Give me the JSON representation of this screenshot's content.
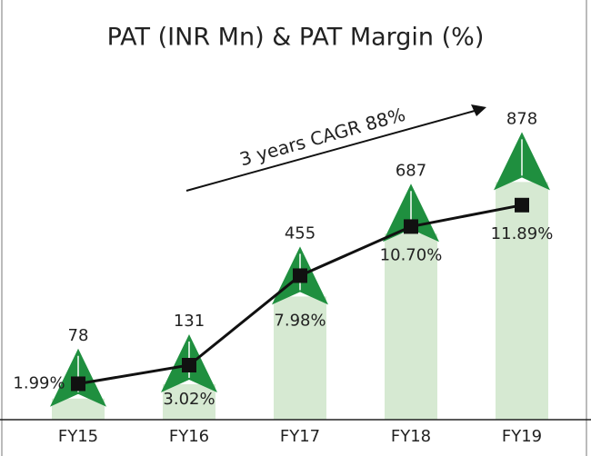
{
  "chart_data": {
    "type": "bar_line",
    "title": "PAT (INR Mn) & PAT Margin (%)",
    "annotation": "3 years CAGR 88%",
    "categories": [
      "FY15",
      "FY16",
      "FY17",
      "FY18",
      "FY19"
    ],
    "series": [
      {
        "name": "PAT (INR Mn)",
        "color": "#d6e9d2",
        "head_color": "#1f8f3f",
        "values": [
          78,
          131,
          455,
          687,
          878
        ]
      },
      {
        "name": "PAT Margin (%)",
        "color": "#111111",
        "axis": "y2",
        "values": [
          1.99,
          3.02,
          7.98,
          10.7,
          11.89
        ],
        "value_labels": [
          "1.99%",
          "3.02%",
          "7.98%",
          "10.70%",
          "11.89%"
        ]
      }
    ],
    "ylim": [
      0,
      1000
    ],
    "y2lim": [
      0,
      15
    ]
  }
}
